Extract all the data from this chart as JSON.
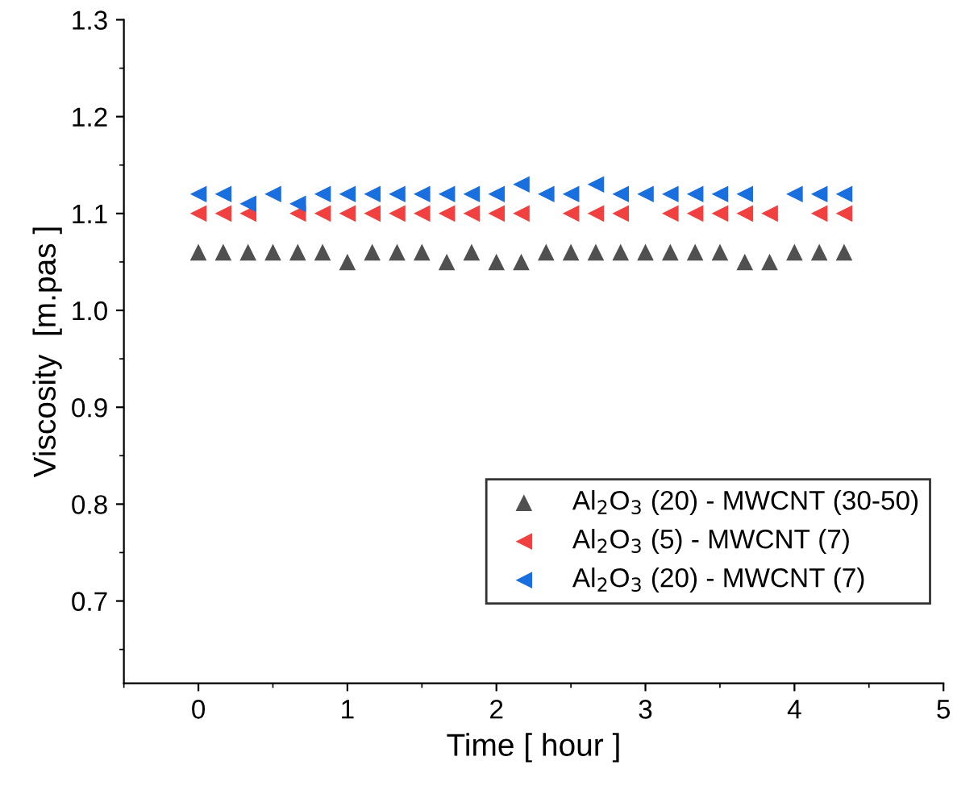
{
  "chart_data": {
    "type": "scatter",
    "xlabel": "Time [ hour ]",
    "ylabel": "Viscosity  [m.pas ]",
    "x": [
      0,
      0.1667,
      0.3333,
      0.5,
      0.6667,
      0.8333,
      1,
      1.1667,
      1.3333,
      1.5,
      1.6667,
      1.8333,
      2,
      2.1667,
      2.3333,
      2.5,
      2.6667,
      2.8333,
      3,
      3.1667,
      3.3333,
      3.5,
      3.6667,
      3.8333,
      4,
      4.1667,
      4.3333
    ],
    "series": [
      {
        "name": "Al$_{2}$O$_{3}$ (20) - MWCNT (30-50)",
        "color": "#505050",
        "marker": "triangle",
        "values": [
          1.06,
          1.06,
          1.06,
          1.06,
          1.06,
          1.06,
          1.05,
          1.06,
          1.06,
          1.06,
          1.05,
          1.06,
          1.05,
          1.05,
          1.06,
          1.06,
          1.06,
          1.06,
          1.06,
          1.06,
          1.06,
          1.06,
          1.05,
          1.05,
          1.06,
          1.06,
          1.06
        ]
      },
      {
        "name": "Al$_{2}$O$_{3}$ (5) - MWCNT (7)",
        "color": "#f04040",
        "marker": "triangle-left",
        "values": [
          1.1,
          1.1,
          1.1,
          null,
          1.1,
          1.1,
          1.1,
          1.1,
          1.1,
          1.1,
          1.1,
          1.1,
          1.1,
          1.1,
          null,
          1.1,
          1.1,
          1.1,
          null,
          1.1,
          1.1,
          1.1,
          1.1,
          1.1,
          null,
          1.1,
          1.1
        ]
      },
      {
        "name": "Al$_{2}$O$_{3}$ (20) - MWCNT (7)",
        "color": "#1a6fdf",
        "marker": "triangle-left",
        "values": [
          1.12,
          1.12,
          1.11,
          1.12,
          1.11,
          1.12,
          1.12,
          1.12,
          1.12,
          1.12,
          1.12,
          1.12,
          1.12,
          1.13,
          1.12,
          1.12,
          1.13,
          1.12,
          1.12,
          1.12,
          1.12,
          1.12,
          1.12,
          null,
          1.12,
          1.12,
          1.12
        ]
      }
    ],
    "xlim": [
      -0.5,
      5
    ],
    "xticks": [
      0,
      1,
      2,
      3,
      4,
      5
    ],
    "ylim": [
      0.615,
      1.3
    ],
    "yticks": [
      0.7,
      0.8,
      0.9,
      {
        "value": 1.0,
        "label": "1.0"
      },
      1.1,
      1.2,
      1.3
    ],
    "grid": false,
    "legend": "bottom right"
  }
}
